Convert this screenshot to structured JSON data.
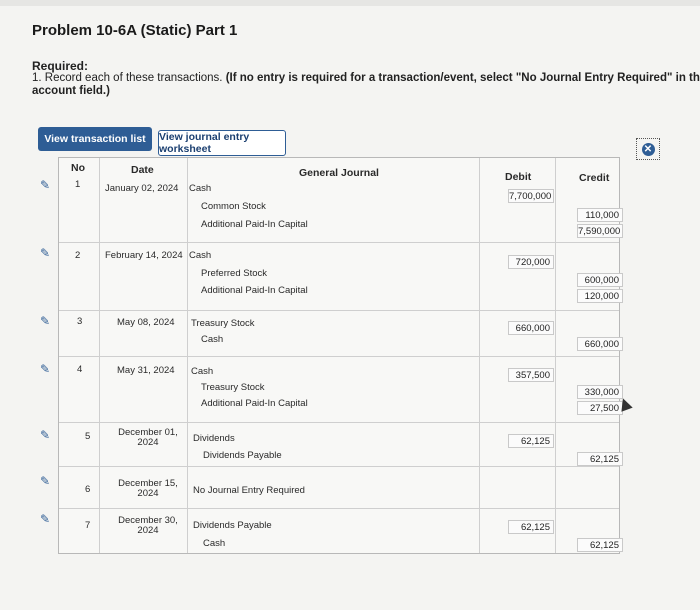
{
  "page": {
    "title": "Problem 10-6A (Static) Part 1",
    "required_heading": "Required:",
    "instruction_num": "1. Record each of these transactions.",
    "instruction_bold": "(If no entry is required for a transaction/event, select \"No Journal Entry Required\" in the firs",
    "instruction_cont": "account field.)"
  },
  "toolbar": {
    "view_list_label": "View transaction list",
    "view_worksheet_label": "View journal entry worksheet"
  },
  "table": {
    "headers": {
      "no": "No",
      "date": "Date",
      "general_journal": "General Journal",
      "debit": "Debit",
      "credit": "Credit"
    },
    "rows": [
      {
        "no": "1",
        "date": "January 02, 2024",
        "lines": [
          {
            "account": "Cash",
            "debit": "7,700,000",
            "credit": ""
          },
          {
            "account": "Common Stock",
            "debit": "",
            "credit": "110,000"
          },
          {
            "account": "Additional Paid-In Capital",
            "debit": "",
            "credit": "7,590,000"
          }
        ]
      },
      {
        "no": "2",
        "date": "February 14, 2024",
        "lines": [
          {
            "account": "Cash",
            "debit": "720,000",
            "credit": ""
          },
          {
            "account": "Preferred Stock",
            "debit": "",
            "credit": "600,000"
          },
          {
            "account": "Additional Paid-In Capital",
            "debit": "",
            "credit": "120,000"
          }
        ]
      },
      {
        "no": "3",
        "date": "May 08, 2024",
        "lines": [
          {
            "account": "Treasury Stock",
            "debit": "660,000",
            "credit": ""
          },
          {
            "account": "Cash",
            "debit": "",
            "credit": "660,000"
          }
        ]
      },
      {
        "no": "4",
        "date": "May 31, 2024",
        "lines": [
          {
            "account": "Cash",
            "debit": "357,500",
            "credit": ""
          },
          {
            "account": "Treasury Stock",
            "debit": "",
            "credit": "330,000"
          },
          {
            "account": "Additional Paid-In Capital",
            "debit": "",
            "credit": "27,500"
          }
        ]
      },
      {
        "no": "5",
        "date_l1": "December 01,",
        "date_l2": "2024",
        "lines": [
          {
            "account": "Dividends",
            "debit": "62,125",
            "credit": ""
          },
          {
            "account": "Dividends Payable",
            "debit": "",
            "credit": "62,125"
          }
        ]
      },
      {
        "no": "6",
        "date_l1": "December 15,",
        "date_l2": "2024",
        "lines": [
          {
            "account": "No Journal Entry Required",
            "debit": "",
            "credit": ""
          }
        ]
      },
      {
        "no": "7",
        "date_l1": "December 30,",
        "date_l2": "2024",
        "lines": [
          {
            "account": "Dividends Payable",
            "debit": "62,125",
            "credit": ""
          },
          {
            "account": "Cash",
            "debit": "",
            "credit": "62,125"
          }
        ]
      }
    ]
  },
  "colors": {
    "accent": "#2e5d95"
  }
}
